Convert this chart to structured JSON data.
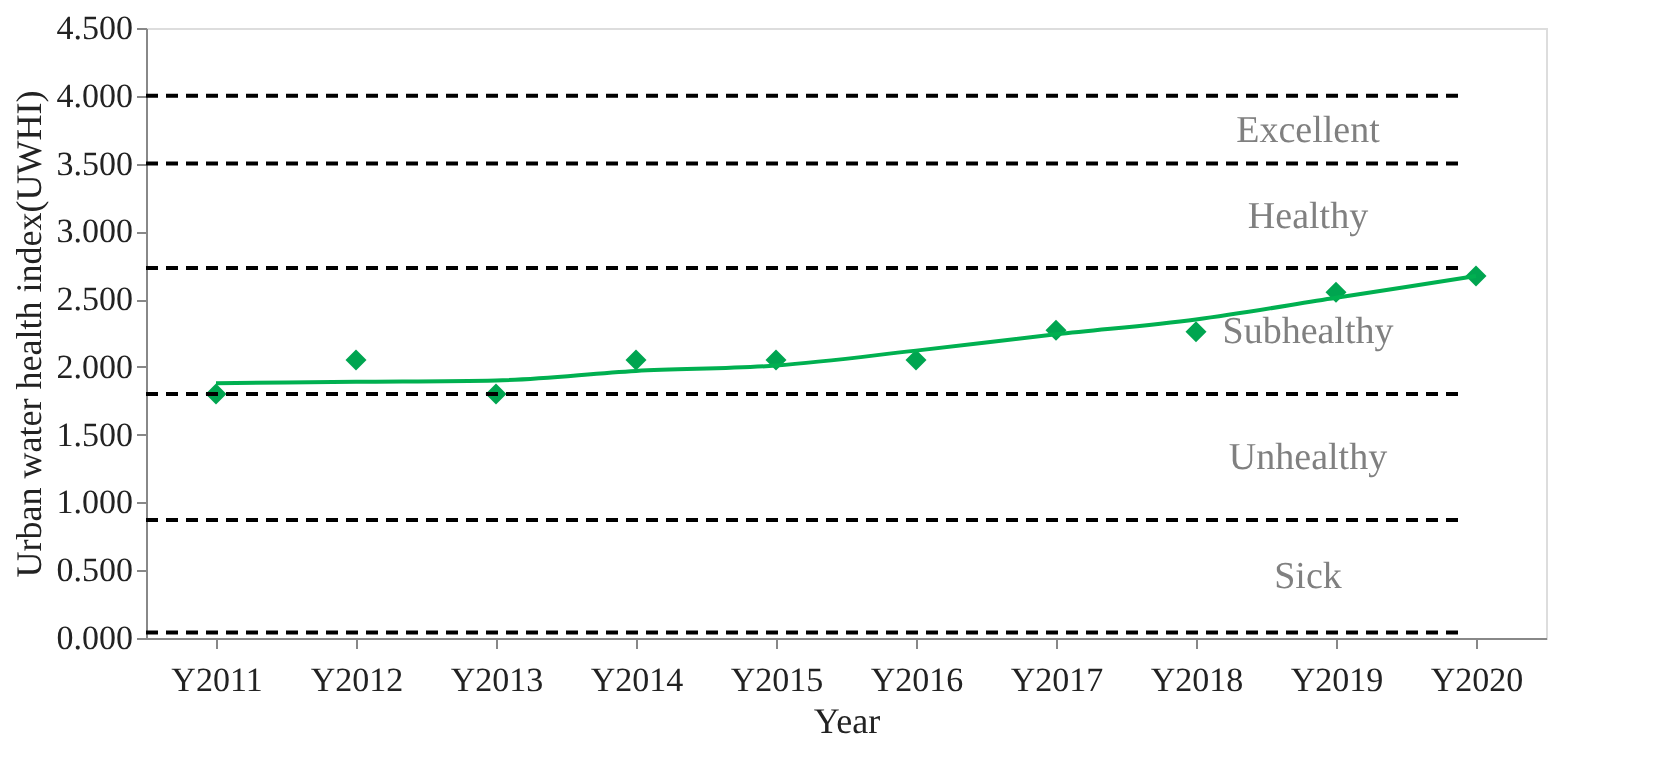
{
  "chart_data": {
    "type": "scatter",
    "xlabel": "Year",
    "ylabel": "Urban water health index(UWHI)",
    "categories": [
      "Y2011",
      "Y2012",
      "Y2013",
      "Y2014",
      "Y2015",
      "Y2016",
      "Y2017",
      "Y2018",
      "Y2019",
      "Y2020"
    ],
    "series": [
      {
        "color": "#00a550",
        "marker": "diamond",
        "values": [
          1.8,
          2.05,
          1.8,
          2.05,
          2.05,
          2.05,
          2.27,
          2.26,
          2.55,
          2.67
        ]
      },
      {
        "type": "line",
        "color": "#00b050",
        "marker": "none",
        "line_style": "solid",
        "values": [
          1.88,
          1.89,
          1.9,
          1.97,
          2.01,
          2.12,
          2.24,
          2.35,
          2.51,
          2.67
        ]
      }
    ],
    "ylim": [
      0,
      4.5
    ],
    "yticks": [
      {
        "value": 0,
        "label": "0.000"
      },
      {
        "value": 0.5,
        "label": "0.500"
      },
      {
        "value": 1,
        "label": "1.000"
      },
      {
        "value": 1.5,
        "label": "1.500"
      },
      {
        "value": 2,
        "label": "2.000"
      },
      {
        "value": 2.5,
        "label": "2.500"
      },
      {
        "value": 3,
        "label": "3.000"
      },
      {
        "value": 3.5,
        "label": "3.500"
      },
      {
        "value": 4,
        "label": "4.000"
      },
      {
        "value": 4.5,
        "label": "4.500"
      }
    ],
    "ref_lines": [
      {
        "axis": "y",
        "value": 4.0,
        "color": "#000000",
        "line_style": "dashed"
      },
      {
        "axis": "y",
        "value": 3.5,
        "color": "#000000",
        "line_style": "dashed"
      },
      {
        "axis": "y",
        "value": 2.73,
        "color": "#000000",
        "line_style": "dashed"
      },
      {
        "axis": "y",
        "value": 1.8,
        "color": "#000000",
        "line_style": "dashed"
      },
      {
        "axis": "y",
        "value": 0.87,
        "color": "#000000",
        "line_style": "dashed"
      },
      {
        "axis": "y",
        "value": 0.04,
        "color": "#000000",
        "line_style": "dashed"
      }
    ],
    "annotations": [
      "Excellent",
      "Healthy",
      "Subhealthy",
      "Unhealthy",
      "Sick"
    ]
  }
}
